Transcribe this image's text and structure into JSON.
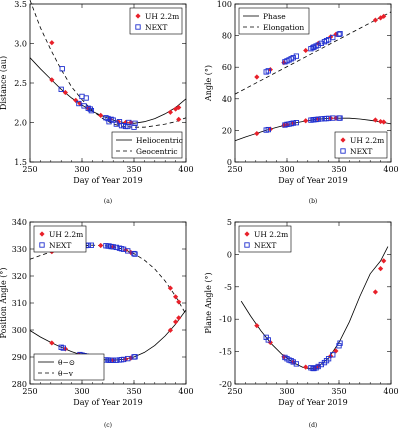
{
  "chart_data": [
    {
      "type": "scatter",
      "caption": "(a)",
      "xlabel": "Day of Year 2019",
      "ylabel": "Distance (au)",
      "xlim": [
        250,
        400
      ],
      "ylim": [
        1.5,
        3.5
      ],
      "xticks": [
        "250",
        "300",
        "350",
        "400"
      ],
      "yticks": [
        "1.5",
        "2.0",
        "2.5",
        "3.0",
        "3.5"
      ],
      "legends": [
        {
          "placement": "top-right",
          "entries": [
            {
              "label": "UH 2.2m",
              "marker": "diamond",
              "color": "#e8202a"
            },
            {
              "label": "NEXT",
              "marker": "square",
              "color": "#2030d0"
            }
          ]
        },
        {
          "placement": "bottom-right",
          "entries": [
            {
              "label": "Heliocentric",
              "style": "solid"
            },
            {
              "label": "Geocentric",
              "style": "dashed"
            }
          ]
        }
      ],
      "lines": [
        {
          "name": "Heliocentric",
          "style": "solid",
          "x": [
            250,
            260,
            270,
            280,
            290,
            300,
            310,
            320,
            330,
            340,
            350,
            360,
            370,
            380,
            390,
            400
          ],
          "y": [
            2.82,
            2.68,
            2.55,
            2.42,
            2.31,
            2.22,
            2.14,
            2.08,
            2.03,
            2.0,
            1.99,
            2.01,
            2.05,
            2.11,
            2.19,
            2.3
          ]
        },
        {
          "name": "Geocentric",
          "style": "dashed",
          "x": [
            250,
            260,
            270,
            280,
            290,
            300,
            310,
            320,
            330,
            340,
            350,
            360,
            370,
            380,
            390,
            400
          ],
          "y": [
            3.55,
            3.2,
            2.92,
            2.67,
            2.45,
            2.29,
            2.15,
            2.05,
            1.98,
            1.95,
            1.94,
            1.94,
            1.96,
            1.98,
            2.01,
            2.06
          ]
        }
      ],
      "series": [
        {
          "name": "UH 2.2m",
          "marker": "diamond",
          "color": "#e8202a",
          "x": [
            271,
            271,
            284,
            294,
            298,
            306,
            318,
            327,
            335,
            342,
            347,
            385,
            390,
            393,
            393
          ],
          "y": [
            2.54,
            3.01,
            2.38,
            2.28,
            2.24,
            2.18,
            2.09,
            2.04,
            2.01,
            2.0,
            2.0,
            2.13,
            2.17,
            2.19,
            2.04
          ]
        },
        {
          "name": "NEXT",
          "marker": "square",
          "color": "#2030d0",
          "x": [
            280,
            281,
            297,
            300,
            302,
            304,
            306,
            308,
            309,
            323,
            325,
            326,
            328,
            330,
            333,
            336,
            338,
            340,
            342,
            344,
            345,
            350,
            351
          ],
          "y": [
            2.42,
            2.68,
            2.24,
            2.33,
            2.21,
            2.31,
            2.18,
            2.17,
            2.15,
            2.06,
            2.05,
            2.01,
            2.04,
            2.03,
            1.98,
            2.01,
            1.96,
            1.96,
            1.95,
            1.95,
            2.0,
            1.94,
            1.99
          ]
        }
      ]
    },
    {
      "type": "scatter",
      "caption": "(b)",
      "xlabel": "Day of Year 2019",
      "ylabel": "Angle (°)",
      "xlim": [
        250,
        400
      ],
      "ylim": [
        0,
        100
      ],
      "xticks": [
        "250",
        "300",
        "350",
        "400"
      ],
      "yticks": [
        "0",
        "20",
        "40",
        "60",
        "80",
        "100"
      ],
      "legends": [
        {
          "placement": "top-left",
          "entries": [
            {
              "label": "Phase",
              "style": "solid"
            },
            {
              "label": "Elongation",
              "style": "dashed"
            }
          ]
        },
        {
          "placement": "bottom-right",
          "entries": [
            {
              "label": "UH 2.2m",
              "marker": "diamond",
              "color": "#e8202a"
            },
            {
              "label": "NEXT",
              "marker": "square",
              "color": "#2030d0"
            }
          ]
        }
      ],
      "lines": [
        {
          "name": "Phase",
          "style": "solid",
          "x": [
            250,
            260,
            270,
            280,
            290,
            300,
            310,
            320,
            330,
            340,
            350,
            360,
            370,
            380,
            390,
            400
          ],
          "y": [
            13.5,
            15.8,
            18.0,
            20.1,
            21.9,
            23.6,
            25.0,
            26.2,
            27.1,
            27.6,
            27.8,
            27.7,
            27.2,
            26.4,
            25.4,
            24.1
          ]
        },
        {
          "name": "Elongation",
          "style": "dashed",
          "x": [
            250,
            400
          ],
          "y": [
            43,
            95
          ]
        }
      ],
      "series": [
        {
          "name": "UH 2.2m",
          "marker": "diamond",
          "color": "#e8202a",
          "x": [
            271,
            284,
            297,
            300,
            306,
            318,
            330,
            342,
            347,
            385,
            390,
            393,
            271,
            284,
            297,
            318,
            330,
            342,
            347,
            385,
            390,
            393
          ],
          "y": [
            18,
            20.8,
            23.2,
            23.6,
            24.6,
            26.1,
            27.2,
            27.7,
            27.8,
            26.6,
            25.6,
            25.3,
            53.8,
            58.5,
            62.9,
            70.6,
            75.0,
            79.2,
            80.8,
            89.8,
            91.2,
            92.2
          ]
        },
        {
          "name": "NEXT",
          "marker": "square",
          "color": "#2030d0",
          "x": [
            280,
            282,
            298,
            300,
            302,
            304,
            306,
            309,
            323,
            325,
            326,
            328,
            330,
            333,
            336,
            338,
            340,
            344,
            350,
            351,
            280,
            282,
            298,
            300,
            302,
            304,
            306,
            309,
            323,
            325,
            326,
            328,
            330,
            333,
            336,
            338,
            340,
            344,
            350,
            351
          ],
          "y": [
            20.2,
            20.5,
            23.4,
            23.8,
            24.0,
            24.3,
            24.6,
            24.9,
            26.5,
            26.7,
            26.8,
            26.9,
            27.1,
            27.3,
            27.4,
            27.5,
            27.6,
            27.8,
            27.8,
            27.8,
            57.0,
            57.7,
            63.4,
            64.0,
            64.6,
            65.3,
            66.0,
            67.0,
            71.7,
            72.4,
            72.8,
            73.4,
            74.0,
            75.1,
            76.1,
            76.8,
            77.4,
            78.8,
            80.8,
            81.2
          ]
        }
      ]
    },
    {
      "type": "scatter",
      "caption": "(c)",
      "xlabel": "Day of Year 2019",
      "ylabel": "Position Angle (°)",
      "xlim": [
        250,
        400
      ],
      "ylim": [
        280,
        340
      ],
      "xticks": [
        "250",
        "300",
        "350",
        "400"
      ],
      "yticks": [
        "280",
        "290",
        "300",
        "310",
        "320",
        "330",
        "340"
      ],
      "legends": [
        {
          "placement": "top-left",
          "entries": [
            {
              "label": "UH 2.2m",
              "marker": "diamond",
              "color": "#e8202a"
            },
            {
              "label": "NEXT",
              "marker": "square",
              "color": "#2030d0"
            }
          ]
        },
        {
          "placement": "bottom-left",
          "entries": [
            {
              "label": "θ−⊙",
              "style": "solid"
            },
            {
              "label": "θ−v",
              "style": "dashed"
            }
          ]
        }
      ],
      "lines": [
        {
          "name": "θ−⊙",
          "style": "solid",
          "x": [
            250,
            260,
            270,
            280,
            290,
            300,
            310,
            320,
            330,
            340,
            350,
            360,
            370,
            380,
            390,
            400
          ],
          "y": [
            299.8,
            297.4,
            295.4,
            293.6,
            292.0,
            290.7,
            289.7,
            289.0,
            288.8,
            289.1,
            290.0,
            291.7,
            294.3,
            297.8,
            302.2,
            307.4
          ]
        },
        {
          "name": "θ−v",
          "style": "dashed",
          "x": [
            250,
            260,
            270,
            280,
            290,
            300,
            310,
            320,
            330,
            340,
            350,
            360,
            370,
            380,
            390,
            400
          ],
          "y": [
            326.2,
            327.6,
            328.9,
            329.9,
            330.7,
            331.2,
            331.4,
            331.3,
            330.8,
            329.9,
            328.3,
            325.9,
            322.6,
            318.1,
            312.5,
            305.8
          ]
        }
      ],
      "series": [
        {
          "name": "UH 2.2m",
          "marker": "diamond",
          "color": "#e8202a",
          "x": [
            271,
            284,
            297,
            318,
            330,
            342,
            347,
            385,
            390,
            393,
            271,
            284,
            297,
            318,
            330,
            342,
            347,
            385,
            390,
            393
          ],
          "y": [
            295.2,
            293.0,
            290.9,
            289.0,
            288.8,
            289.2,
            289.6,
            299.9,
            303.0,
            304.5,
            329.0,
            330.2,
            331.1,
            331.3,
            330.8,
            329.6,
            328.7,
            315.5,
            312.3,
            310.4
          ]
        },
        {
          "name": "NEXT",
          "marker": "square",
          "color": "#2030d0",
          "x": [
            280,
            282,
            298,
            300,
            302,
            304,
            306,
            309,
            323,
            325,
            326,
            328,
            330,
            333,
            336,
            338,
            340,
            344,
            350,
            351,
            280,
            282,
            298,
            300,
            302,
            304,
            306,
            309,
            323,
            325,
            326,
            328,
            330,
            333,
            336,
            338,
            340,
            344,
            350,
            351
          ],
          "y": [
            293.6,
            293.3,
            290.9,
            290.7,
            290.5,
            290.3,
            290.1,
            289.8,
            288.9,
            288.9,
            288.8,
            288.8,
            288.8,
            288.8,
            288.9,
            289.0,
            289.1,
            289.4,
            290.0,
            290.1,
            329.9,
            330.1,
            331.2,
            331.2,
            331.3,
            331.3,
            331.4,
            331.4,
            331.2,
            331.1,
            331.1,
            330.9,
            330.8,
            330.6,
            330.3,
            330.1,
            329.9,
            329.3,
            328.3,
            328.1
          ]
        }
      ]
    },
    {
      "type": "scatter",
      "caption": "(d)",
      "xlabel": "Day of Year 2019",
      "ylabel": "Plane Angle (°)",
      "xlim": [
        250,
        400
      ],
      "ylim": [
        -20,
        5
      ],
      "xticks": [
        "250",
        "300",
        "350",
        "400"
      ],
      "yticks": [
        "-20",
        "-15",
        "-10",
        "-5",
        "0",
        "5"
      ],
      "legends": [
        {
          "placement": "top-left",
          "entries": [
            {
              "label": "UH 2.2m",
              "marker": "diamond",
              "color": "#e8202a"
            },
            {
              "label": "NEXT",
              "marker": "square",
              "color": "#2030d0"
            }
          ]
        }
      ],
      "lines": [
        {
          "name": "Plane Angle",
          "style": "solid",
          "x": [
            256,
            265,
            275,
            285,
            295,
            305,
            315,
            320,
            325,
            330,
            340,
            350,
            360,
            370,
            380,
            390,
            397
          ],
          "y": [
            -7.2,
            -9.5,
            -11.8,
            -13.8,
            -15.4,
            -16.6,
            -17.4,
            -17.6,
            -17.6,
            -17.3,
            -16.0,
            -13.6,
            -10.4,
            -6.5,
            -3.0,
            -1.0,
            1.2
          ]
        }
      ],
      "series": [
        {
          "name": "UH 2.2m",
          "marker": "diamond",
          "color": "#e8202a",
          "x": [
            271,
            284,
            297,
            306,
            318,
            327,
            330,
            342,
            347,
            385,
            390,
            393
          ],
          "y": [
            -11.0,
            -13.6,
            -15.8,
            -16.6,
            -17.4,
            -17.5,
            -17.3,
            -15.7,
            -14.9,
            -5.8,
            -2.2,
            -1.0
          ]
        },
        {
          "name": "NEXT",
          "marker": "square",
          "color": "#2030d0",
          "x": [
            280,
            282,
            298,
            300,
            302,
            304,
            306,
            309,
            323,
            325,
            326,
            328,
            330,
            333,
            336,
            338,
            340,
            344,
            350,
            351
          ],
          "y": [
            -12.8,
            -13.2,
            -15.9,
            -16.1,
            -16.3,
            -16.4,
            -16.6,
            -16.9,
            -17.5,
            -17.6,
            -17.6,
            -17.5,
            -17.3,
            -17.0,
            -16.7,
            -16.4,
            -16.1,
            -15.5,
            -14.1,
            -13.7
          ]
        }
      ]
    }
  ]
}
